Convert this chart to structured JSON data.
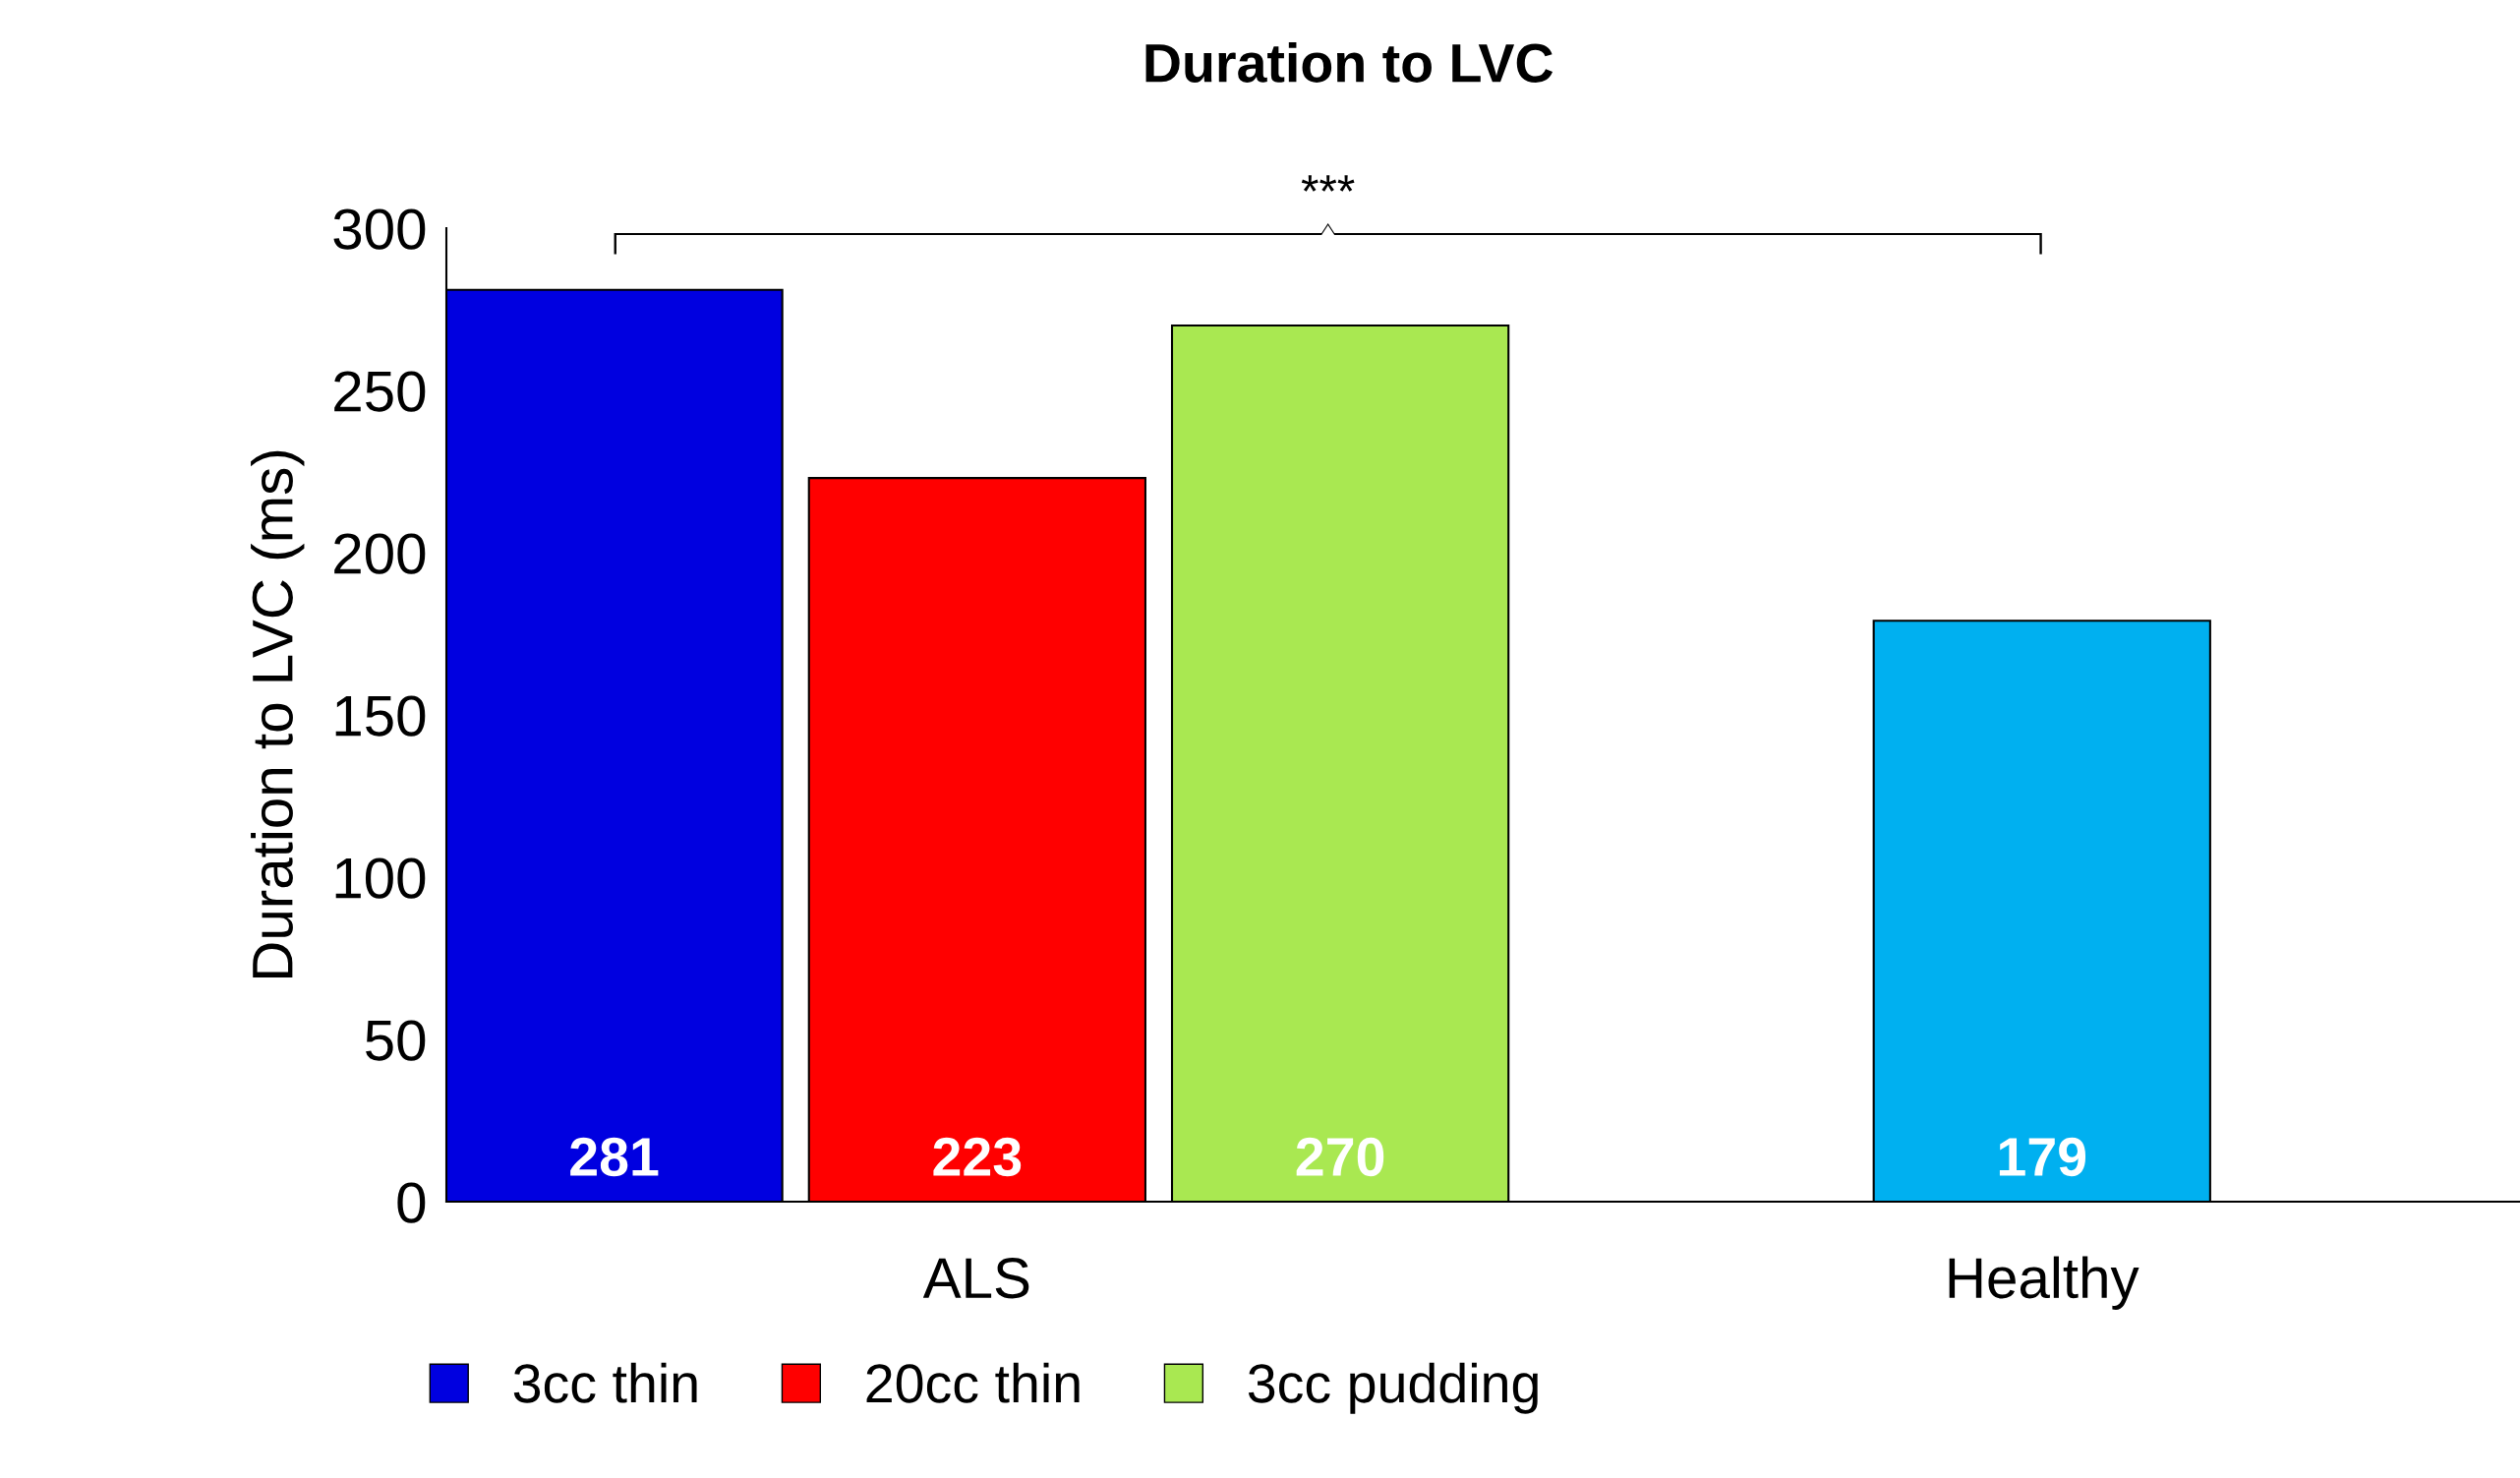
{
  "chart_data": {
    "type": "bar",
    "title": "Duration to LVC",
    "ylabel": "Duration to LVC (ms)",
    "categories": [
      "ALS",
      "Healthy"
    ],
    "series": [
      {
        "name": "3cc thin",
        "color": "#0000e0",
        "values": [
          281,
          null
        ]
      },
      {
        "name": "20cc thin",
        "color": "#ff0000",
        "values": [
          223,
          null
        ]
      },
      {
        "name": "3cc pudding",
        "color": "#a9e851",
        "values": [
          270,
          null
        ]
      },
      {
        "color": "#00b0f0",
        "values": [
          null,
          179
        ]
      }
    ],
    "ylim": [
      0,
      300
    ],
    "yticks": [
      0,
      50,
      100,
      150,
      200,
      250,
      300
    ],
    "data_labels": true,
    "grid": false,
    "legend": "bottom",
    "annotations": [
      "***"
    ]
  }
}
